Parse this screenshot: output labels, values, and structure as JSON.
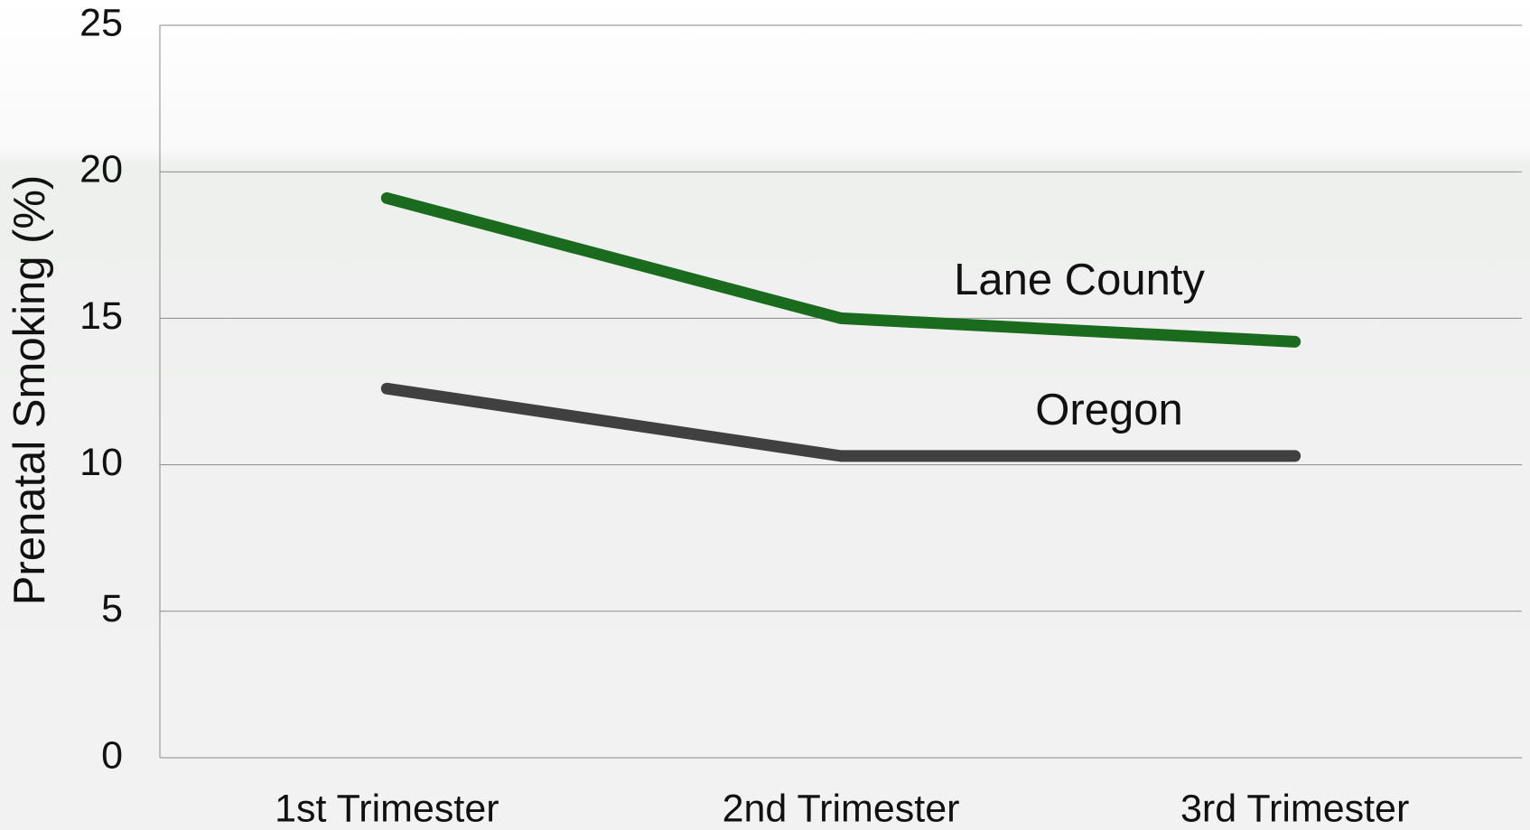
{
  "chart_data": {
    "type": "line",
    "y_label": "Prenatal Smoking (%)",
    "categories": [
      "1st Trimester",
      "2nd Trimester",
      "3rd Trimester"
    ],
    "series": [
      {
        "name": "Lane County",
        "color": "#1a6b1e",
        "values": [
          19.1,
          15.0,
          14.2
        ]
      },
      {
        "name": "Oregon",
        "color": "#404040",
        "values": [
          12.6,
          10.3,
          10.3
        ]
      }
    ],
    "ylim": [
      0,
      25
    ],
    "yticks": [
      0,
      5,
      10,
      15,
      20,
      25
    ],
    "grid": true
  }
}
